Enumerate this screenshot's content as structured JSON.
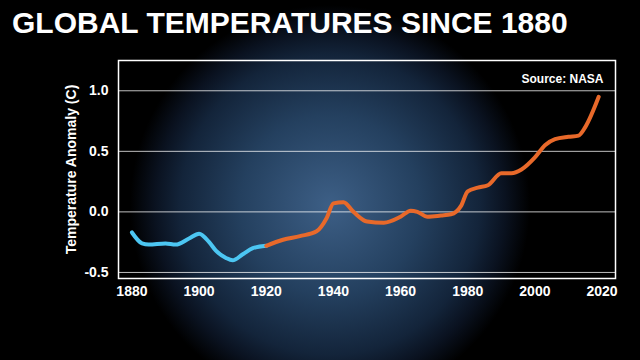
{
  "chart_data": {
    "type": "line",
    "title": "GLOBAL TEMPERATURES SINCE 1880",
    "y_label": "Temperature Anomaly (C)",
    "annotations": [
      "Source: NASA"
    ],
    "x": [
      1880,
      1883,
      1885,
      1890,
      1893,
      1897,
      1900,
      1903,
      1905,
      1908,
      1910,
      1913,
      1916,
      1920,
      1925,
      1930,
      1935,
      1938,
      1940,
      1943,
      1946,
      1950,
      1955,
      1960,
      1963,
      1965,
      1968,
      1972,
      1975,
      1978,
      1980,
      1983,
      1986,
      1990,
      1993,
      1996,
      2000,
      2003,
      2006,
      2010,
      2013,
      2015,
      2019
    ],
    "series": [
      {
        "color": "#4cc6f2",
        "values": [
          -0.17,
          -0.26,
          -0.27,
          -0.26,
          -0.27,
          -0.22,
          -0.18,
          -0.25,
          -0.32,
          -0.38,
          -0.4,
          -0.35,
          -0.3,
          -0.28,
          null,
          null,
          null,
          null,
          null,
          null,
          null,
          null,
          null,
          null,
          null,
          null,
          null,
          null,
          null,
          null,
          null,
          null,
          null,
          null,
          null,
          null,
          null,
          null,
          null,
          null,
          null,
          null,
          null
        ]
      },
      {
        "color": "#e8692a",
        "values": [
          null,
          null,
          null,
          null,
          null,
          null,
          null,
          null,
          null,
          null,
          null,
          null,
          null,
          -0.28,
          -0.23,
          -0.2,
          -0.16,
          -0.05,
          0.07,
          0.08,
          0,
          -0.08,
          -0.09,
          -0.04,
          0.01,
          0,
          -0.04,
          -0.03,
          -0.02,
          0.05,
          0.17,
          0.2,
          0.22,
          0.32,
          0.32,
          0.35,
          0.45,
          0.55,
          0.6,
          0.62,
          0.63,
          0.7,
          0.95
        ]
      }
    ],
    "xlim": [
      1876,
      2024
    ],
    "xticks": [
      1880,
      1900,
      1920,
      1940,
      1960,
      1980,
      2000,
      2020
    ],
    "ylim": [
      -0.55,
      1.25
    ],
    "yticks": [
      -0.5,
      {
        "value": 0,
        "label": "0.0"
      },
      0.5,
      {
        "value": 1,
        "label": "1.0"
      }
    ],
    "grid": true
  }
}
